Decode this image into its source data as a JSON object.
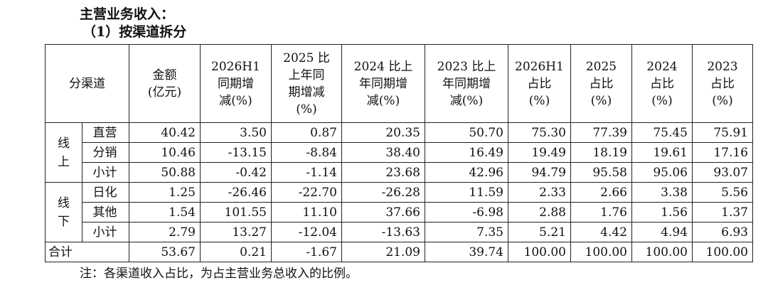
{
  "heading": "主营业务收入：",
  "subheading": "（1）按渠道拆分",
  "table": {
    "headers": {
      "channel": "分渠道",
      "amount": [
        "金额",
        "(亿元)"
      ],
      "h1_yoy": [
        "2026H1",
        "同期增",
        "减(%)"
      ],
      "y2025_yoy": [
        "2025 比",
        "上年同",
        "期增减",
        "(%)"
      ],
      "y2024_yoy": [
        "2024 比上",
        "年同期增",
        "减(%)"
      ],
      "y2023_yoy": [
        "2023 比上",
        "年同期增",
        "减(%)"
      ],
      "h1_share": [
        "2026H1",
        "占比",
        "(%)"
      ],
      "y2025_share": [
        "2025",
        "占比",
        "(%)"
      ],
      "y2024_share": [
        "2024",
        "占比",
        "(%)"
      ],
      "y2023_share": [
        "2023",
        "占比",
        "(%)"
      ]
    },
    "groups": [
      {
        "label": [
          "线",
          "上"
        ],
        "rows": [
          {
            "name": "直营",
            "values": [
              "40.42",
              "3.50",
              "0.87",
              "20.35",
              "50.70",
              "75.30",
              "77.39",
              "75.45",
              "75.91"
            ]
          },
          {
            "name": "分销",
            "values": [
              "10.46",
              "-13.15",
              "-8.84",
              "38.40",
              "16.49",
              "19.49",
              "18.19",
              "19.61",
              "17.16"
            ]
          },
          {
            "name": "小计",
            "values": [
              "50.88",
              "-0.42",
              "-1.14",
              "23.68",
              "42.96",
              "94.79",
              "95.58",
              "95.06",
              "93.07"
            ]
          }
        ]
      },
      {
        "label": [
          "线",
          "下"
        ],
        "rows": [
          {
            "name": "日化",
            "values": [
              "1.25",
              "-26.46",
              "-22.70",
              "-26.28",
              "11.59",
              "2.33",
              "2.66",
              "3.38",
              "5.56"
            ]
          },
          {
            "name": "其他",
            "values": [
              "1.54",
              "101.55",
              "11.10",
              "37.66",
              "-6.98",
              "2.88",
              "1.76",
              "1.56",
              "1.37"
            ]
          },
          {
            "name": "小计",
            "values": [
              "2.79",
              "13.27",
              "-12.04",
              "-13.63",
              "7.35",
              "5.21",
              "4.42",
              "4.94",
              "6.93"
            ]
          }
        ]
      }
    ],
    "total": {
      "name": "合计",
      "values": [
        "53.67",
        "0.21",
        "-1.67",
        "21.09",
        "39.74",
        "100.00",
        "100.00",
        "100.00",
        "100.00"
      ]
    }
  },
  "note": "注：各渠道收入占比，为占主营业务总收入的比例。"
}
